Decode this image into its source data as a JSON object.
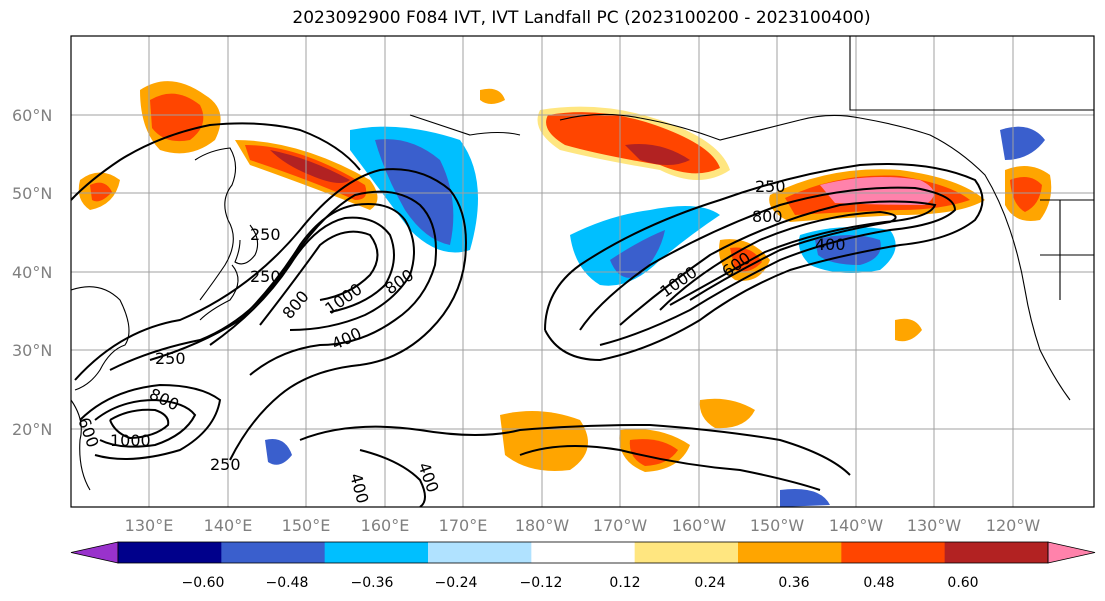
{
  "title": "2023092900 F084 IVT, IVT Landfall PC (2023100200 - 2023100400)",
  "lat_labels": [
    "60°N",
    "50°N",
    "40°N",
    "30°N",
    "20°N"
  ],
  "lon_labels": [
    "130°E",
    "140°E",
    "150°E",
    "160°E",
    "170°E",
    "180°W",
    "170°W",
    "160°W",
    "150°W",
    "140°W",
    "130°W",
    "120°W"
  ],
  "colorbar": {
    "colors": [
      "#9932cc",
      "#00008b",
      "#3a5fcd",
      "#00bfff",
      "#b0e2ff",
      "#ffffff",
      "#ffe680",
      "#ffa500",
      "#ff4500",
      "#b22222",
      "#ff82ab"
    ],
    "tick_labels": [
      "−0.60",
      "−0.48",
      "−0.36",
      "−0.24",
      "−0.12",
      "0.12",
      "0.24",
      "0.36",
      "0.48",
      "0.60"
    ]
  },
  "ivt_contour_labels": [
    "250",
    "250",
    "800",
    "1000",
    "400",
    "800",
    "250",
    "800",
    "1000",
    "600",
    "250",
    "400",
    "250",
    "800",
    "1000",
    "600",
    "400",
    "400"
  ]
}
